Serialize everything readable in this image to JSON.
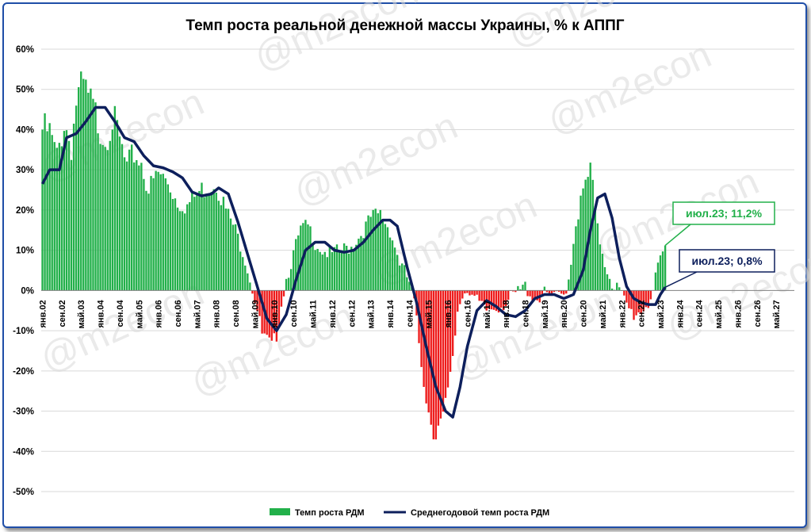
{
  "chart_data": {
    "type": "bar+line",
    "title": "Темп роста реальной денежной массы Украины, % к АППГ",
    "xlabel": "",
    "ylabel": "",
    "ylim": [
      -50,
      60
    ],
    "yticks": [
      60,
      50,
      40,
      30,
      20,
      10,
      0,
      -10,
      -20,
      -30,
      -40,
      -50
    ],
    "ytick_labels": [
      "60%",
      "50%",
      "40%",
      "30%",
      "20%",
      "10%",
      "0%",
      "-10%",
      "-20%",
      "-30%",
      "-40%",
      "-50%"
    ],
    "x_start": "янв.02",
    "x_end": "дек.27",
    "xtick_labels": [
      "янв.02",
      "сен.02",
      "май.03",
      "янв.04",
      "сен.04",
      "май.05",
      "янв.06",
      "сен.06",
      "май.07",
      "янв.08",
      "сен.08",
      "май.09",
      "янв.10",
      "сен.10",
      "май.11",
      "янв.12",
      "сен.12",
      "май.13",
      "янв.14",
      "сен.14",
      "май.15",
      "янв.16",
      "сен.16",
      "май.17",
      "янв.18",
      "сен.18",
      "май.19",
      "янв.20",
      "сен.20",
      "май.21",
      "янв.22",
      "сен.22",
      "май.23",
      "янв.24",
      "сен.24",
      "май.25",
      "янв.26",
      "сен.26",
      "май.27"
    ],
    "grid": true,
    "legend_position": "bottom",
    "series": [
      {
        "name": "Темп роста РДМ",
        "kind": "bar",
        "positive_color": "#22b04a",
        "negative_color": "#ee1c1c",
        "anchors": [
          [
            "янв.02",
            40
          ],
          [
            "апр.02",
            39
          ],
          [
            "июл.02",
            33
          ],
          [
            "окт.02",
            42
          ],
          [
            "янв.03",
            36
          ],
          [
            "мар.03",
            47
          ],
          [
            "июн.03",
            50
          ],
          [
            "сен.03",
            46
          ],
          [
            "дек.03",
            42
          ],
          [
            "мар.04",
            38
          ],
          [
            "июн.04",
            43
          ],
          [
            "сен.04",
            37
          ],
          [
            "дек.04",
            30
          ],
          [
            "мар.05",
            34
          ],
          [
            "июн.05",
            32
          ],
          [
            "сен.05",
            25
          ],
          [
            "янв.06",
            29
          ],
          [
            "май.06",
            27
          ],
          [
            "сен.06",
            22
          ],
          [
            "янв.07",
            21
          ],
          [
            "май.07",
            24
          ],
          [
            "сен.07",
            26
          ],
          [
            "янв.08",
            27
          ],
          [
            "май.08",
            20
          ],
          [
            "сен.08",
            15
          ],
          [
            "янв.09",
            8
          ],
          [
            "май.09",
            -2
          ],
          [
            "авг.09",
            -11
          ],
          [
            "дек.09",
            -14
          ],
          [
            "фев.10",
            -11
          ],
          [
            "апр.10",
            -3
          ],
          [
            "июн.10",
            3
          ],
          [
            "сен.10",
            9
          ],
          [
            "дек.10",
            15
          ],
          [
            "мар.11",
            16
          ],
          [
            "июн.11",
            12
          ],
          [
            "сен.11",
            10
          ],
          [
            "янв.12",
            9
          ],
          [
            "май.12",
            10
          ],
          [
            "сен.12",
            11
          ],
          [
            "янв.13",
            14
          ],
          [
            "май.13",
            18
          ],
          [
            "сен.13",
            19
          ],
          [
            "янв.14",
            15
          ],
          [
            "май.14",
            7
          ],
          [
            "сен.14",
            2
          ],
          [
            "ноя.14",
            -3
          ],
          [
            "фев.15",
            -18
          ],
          [
            "май.15",
            -30
          ],
          [
            "авг.15",
            -35
          ],
          [
            "ноя.15",
            -33
          ],
          [
            "фев.16",
            -22
          ],
          [
            "май.16",
            -5
          ],
          [
            "июл.16",
            -1
          ],
          [
            "сен.16",
            1
          ],
          [
            "ноя.16",
            -1
          ],
          [
            "янв.17",
            -3
          ],
          [
            "май.17",
            -5
          ],
          [
            "сен.17",
            -4
          ],
          [
            "янв.18",
            -3
          ],
          [
            "май.18",
            -1
          ],
          [
            "сен.18",
            1
          ],
          [
            "янв.19",
            -2
          ],
          [
            "май.19",
            -1
          ],
          [
            "сен.19",
            -2
          ],
          [
            "янв.20",
            -1
          ],
          [
            "мар.20",
            3
          ],
          [
            "июн.20",
            17
          ],
          [
            "сен.20",
            24
          ],
          [
            "дек.20",
            30
          ],
          [
            "мар.21",
            15
          ],
          [
            "июн.21",
            7
          ],
          [
            "сен.21",
            2
          ],
          [
            "дек.21",
            0
          ],
          [
            "мар.22",
            -4
          ],
          [
            "июн.22",
            -6
          ],
          [
            "сен.22",
            -5
          ],
          [
            "дек.22",
            -3
          ],
          [
            "фев.23",
            0
          ],
          [
            "апр.23",
            5
          ],
          [
            "июн.23",
            9
          ],
          [
            "июл.23",
            11.2
          ]
        ]
      },
      {
        "name": "Среднегодовой темп роста РДМ",
        "kind": "line",
        "color": "#0d1f5c",
        "anchors": [
          [
            "янв.02",
            26.5
          ],
          [
            "апр.02",
            30
          ],
          [
            "авг.02",
            30
          ],
          [
            "ноя.02",
            38
          ],
          [
            "мар.03",
            39
          ],
          [
            "июл.03",
            42
          ],
          [
            "ноя.03",
            45.5
          ],
          [
            "мар.04",
            45.5
          ],
          [
            "июл.04",
            42
          ],
          [
            "ноя.04",
            38
          ],
          [
            "мар.05",
            37
          ],
          [
            "июл.05",
            33.5
          ],
          [
            "ноя.05",
            31
          ],
          [
            "мар.06",
            30.5
          ],
          [
            "июл.06",
            29.5
          ],
          [
            "ноя.06",
            28
          ],
          [
            "мар.07",
            24.5
          ],
          [
            "июл.07",
            23.5
          ],
          [
            "ноя.07",
            24
          ],
          [
            "фев.08",
            25.5
          ],
          [
            "июн.08",
            24
          ],
          [
            "окт.08",
            17
          ],
          [
            "фев.09",
            9
          ],
          [
            "июн.09",
            1
          ],
          [
            "окт.09",
            -7
          ],
          [
            "фев.10",
            -10
          ],
          [
            "июн.10",
            -6
          ],
          [
            "окт.10",
            2.5
          ],
          [
            "фев.11",
            10
          ],
          [
            "июн.11",
            12
          ],
          [
            "окт.11",
            12
          ],
          [
            "фев.12",
            10
          ],
          [
            "июн.12",
            9.5
          ],
          [
            "окт.12",
            10
          ],
          [
            "фев.13",
            12
          ],
          [
            "июн.13",
            15
          ],
          [
            "окт.13",
            17.5
          ],
          [
            "янв.14",
            17.5
          ],
          [
            "апр.14",
            16
          ],
          [
            "авг.14",
            6
          ],
          [
            "дек.14",
            -3
          ],
          [
            "апр.15",
            -14
          ],
          [
            "авг.15",
            -24
          ],
          [
            "дек.15",
            -30
          ],
          [
            "мар.16",
            -31.5
          ],
          [
            "июн.16",
            -24
          ],
          [
            "сен.16",
            -14
          ],
          [
            "янв.17",
            -5
          ],
          [
            "май.17",
            -2.5
          ],
          [
            "сен.17",
            -4
          ],
          [
            "янв.18",
            -6
          ],
          [
            "май.18",
            -6.5
          ],
          [
            "сен.18",
            -5
          ],
          [
            "янв.19",
            -2
          ],
          [
            "май.19",
            -1
          ],
          [
            "сен.19",
            -1
          ],
          [
            "янв.20",
            -2
          ],
          [
            "май.20",
            -1
          ],
          [
            "сен.20",
            5
          ],
          [
            "дек.20",
            15
          ],
          [
            "мар.21",
            23
          ],
          [
            "июн.21",
            24
          ],
          [
            "сен.21",
            18
          ],
          [
            "дек.21",
            8
          ],
          [
            "мар.22",
            1
          ],
          [
            "июн.22",
            -2
          ],
          [
            "сен.22",
            -3
          ],
          [
            "дек.22",
            -3.5
          ],
          [
            "мар.23",
            -3.5
          ],
          [
            "май.23",
            -1
          ],
          [
            "июл.23",
            0.8
          ]
        ]
      }
    ],
    "annotations": [
      {
        "text": "июл.23; 11,2%",
        "series": "Темп роста РДМ",
        "x": "июл.23",
        "y": 11.2,
        "color": "#22b04a"
      },
      {
        "text": "июл.23; 0,8%",
        "series": "Среднегодовой темп роста РДМ",
        "x": "июл.23",
        "y": 0.8,
        "color": "#0d1f5c"
      }
    ],
    "watermark": "@m2econ"
  }
}
